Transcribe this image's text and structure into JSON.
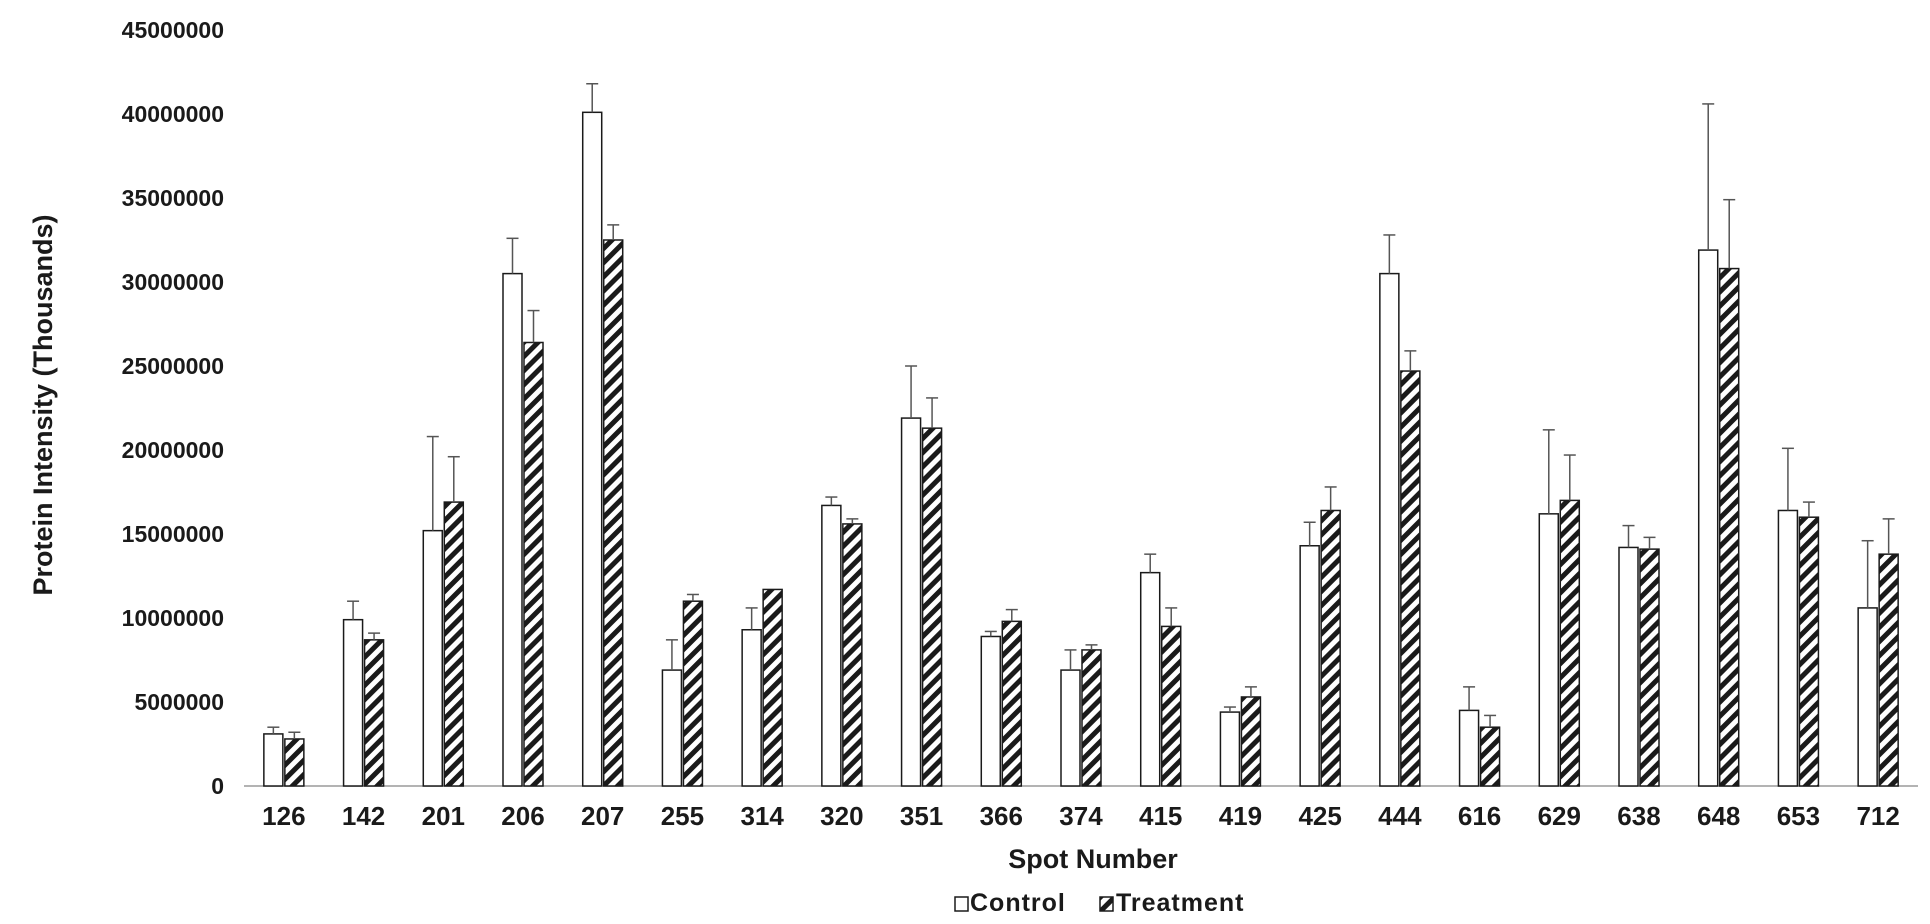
{
  "chart_data": {
    "type": "bar",
    "title": "",
    "xlabel": "Spot Number",
    "ylabel": "Protein Intensity (Thousands)",
    "ylim": [
      0,
      45000000
    ],
    "yticks": [
      0,
      5000000,
      10000000,
      15000000,
      20000000,
      25000000,
      30000000,
      35000000,
      40000000,
      45000000
    ],
    "ytick_labels": [
      "0",
      "5000000",
      "10000000",
      "15000000",
      "20000000",
      "25000000",
      "30000000",
      "35000000",
      "40000000",
      "45000000"
    ],
    "grid": false,
    "legend_position": "bottom-center",
    "categories": [
      "126",
      "142",
      "201",
      "206",
      "207",
      "255",
      "314",
      "320",
      "351",
      "366",
      "374",
      "415",
      "419",
      "425",
      "444",
      "616",
      "629",
      "638",
      "648",
      "653",
      "712"
    ],
    "series": [
      {
        "name": "Control",
        "pattern": "open",
        "values": [
          3100000,
          9900000,
          15200000,
          30500000,
          40100000,
          6900000,
          9300000,
          16700000,
          21900000,
          8900000,
          6900000,
          12700000,
          4400000,
          14300000,
          30500000,
          4500000,
          16200000,
          14200000,
          31900000,
          16400000,
          10600000
        ],
        "errors": [
          400000,
          1100000,
          5600000,
          2100000,
          1700000,
          1800000,
          1300000,
          500000,
          3100000,
          300000,
          1200000,
          1100000,
          300000,
          1400000,
          2300000,
          1400000,
          5000000,
          1300000,
          8700000,
          3700000,
          4000000
        ]
      },
      {
        "name": "Treatment",
        "pattern": "hatched",
        "values": [
          2800000,
          8700000,
          16900000,
          26400000,
          32500000,
          11000000,
          11700000,
          15600000,
          21300000,
          9800000,
          8100000,
          9500000,
          5300000,
          16400000,
          24700000,
          3500000,
          17000000,
          14100000,
          30800000,
          16000000,
          13800000
        ],
        "errors": [
          400000,
          400000,
          2700000,
          1900000,
          900000,
          400000,
          0,
          300000,
          1800000,
          700000,
          300000,
          1100000,
          600000,
          1400000,
          1200000,
          700000,
          2700000,
          700000,
          4100000,
          900000,
          2100000
        ]
      }
    ]
  }
}
